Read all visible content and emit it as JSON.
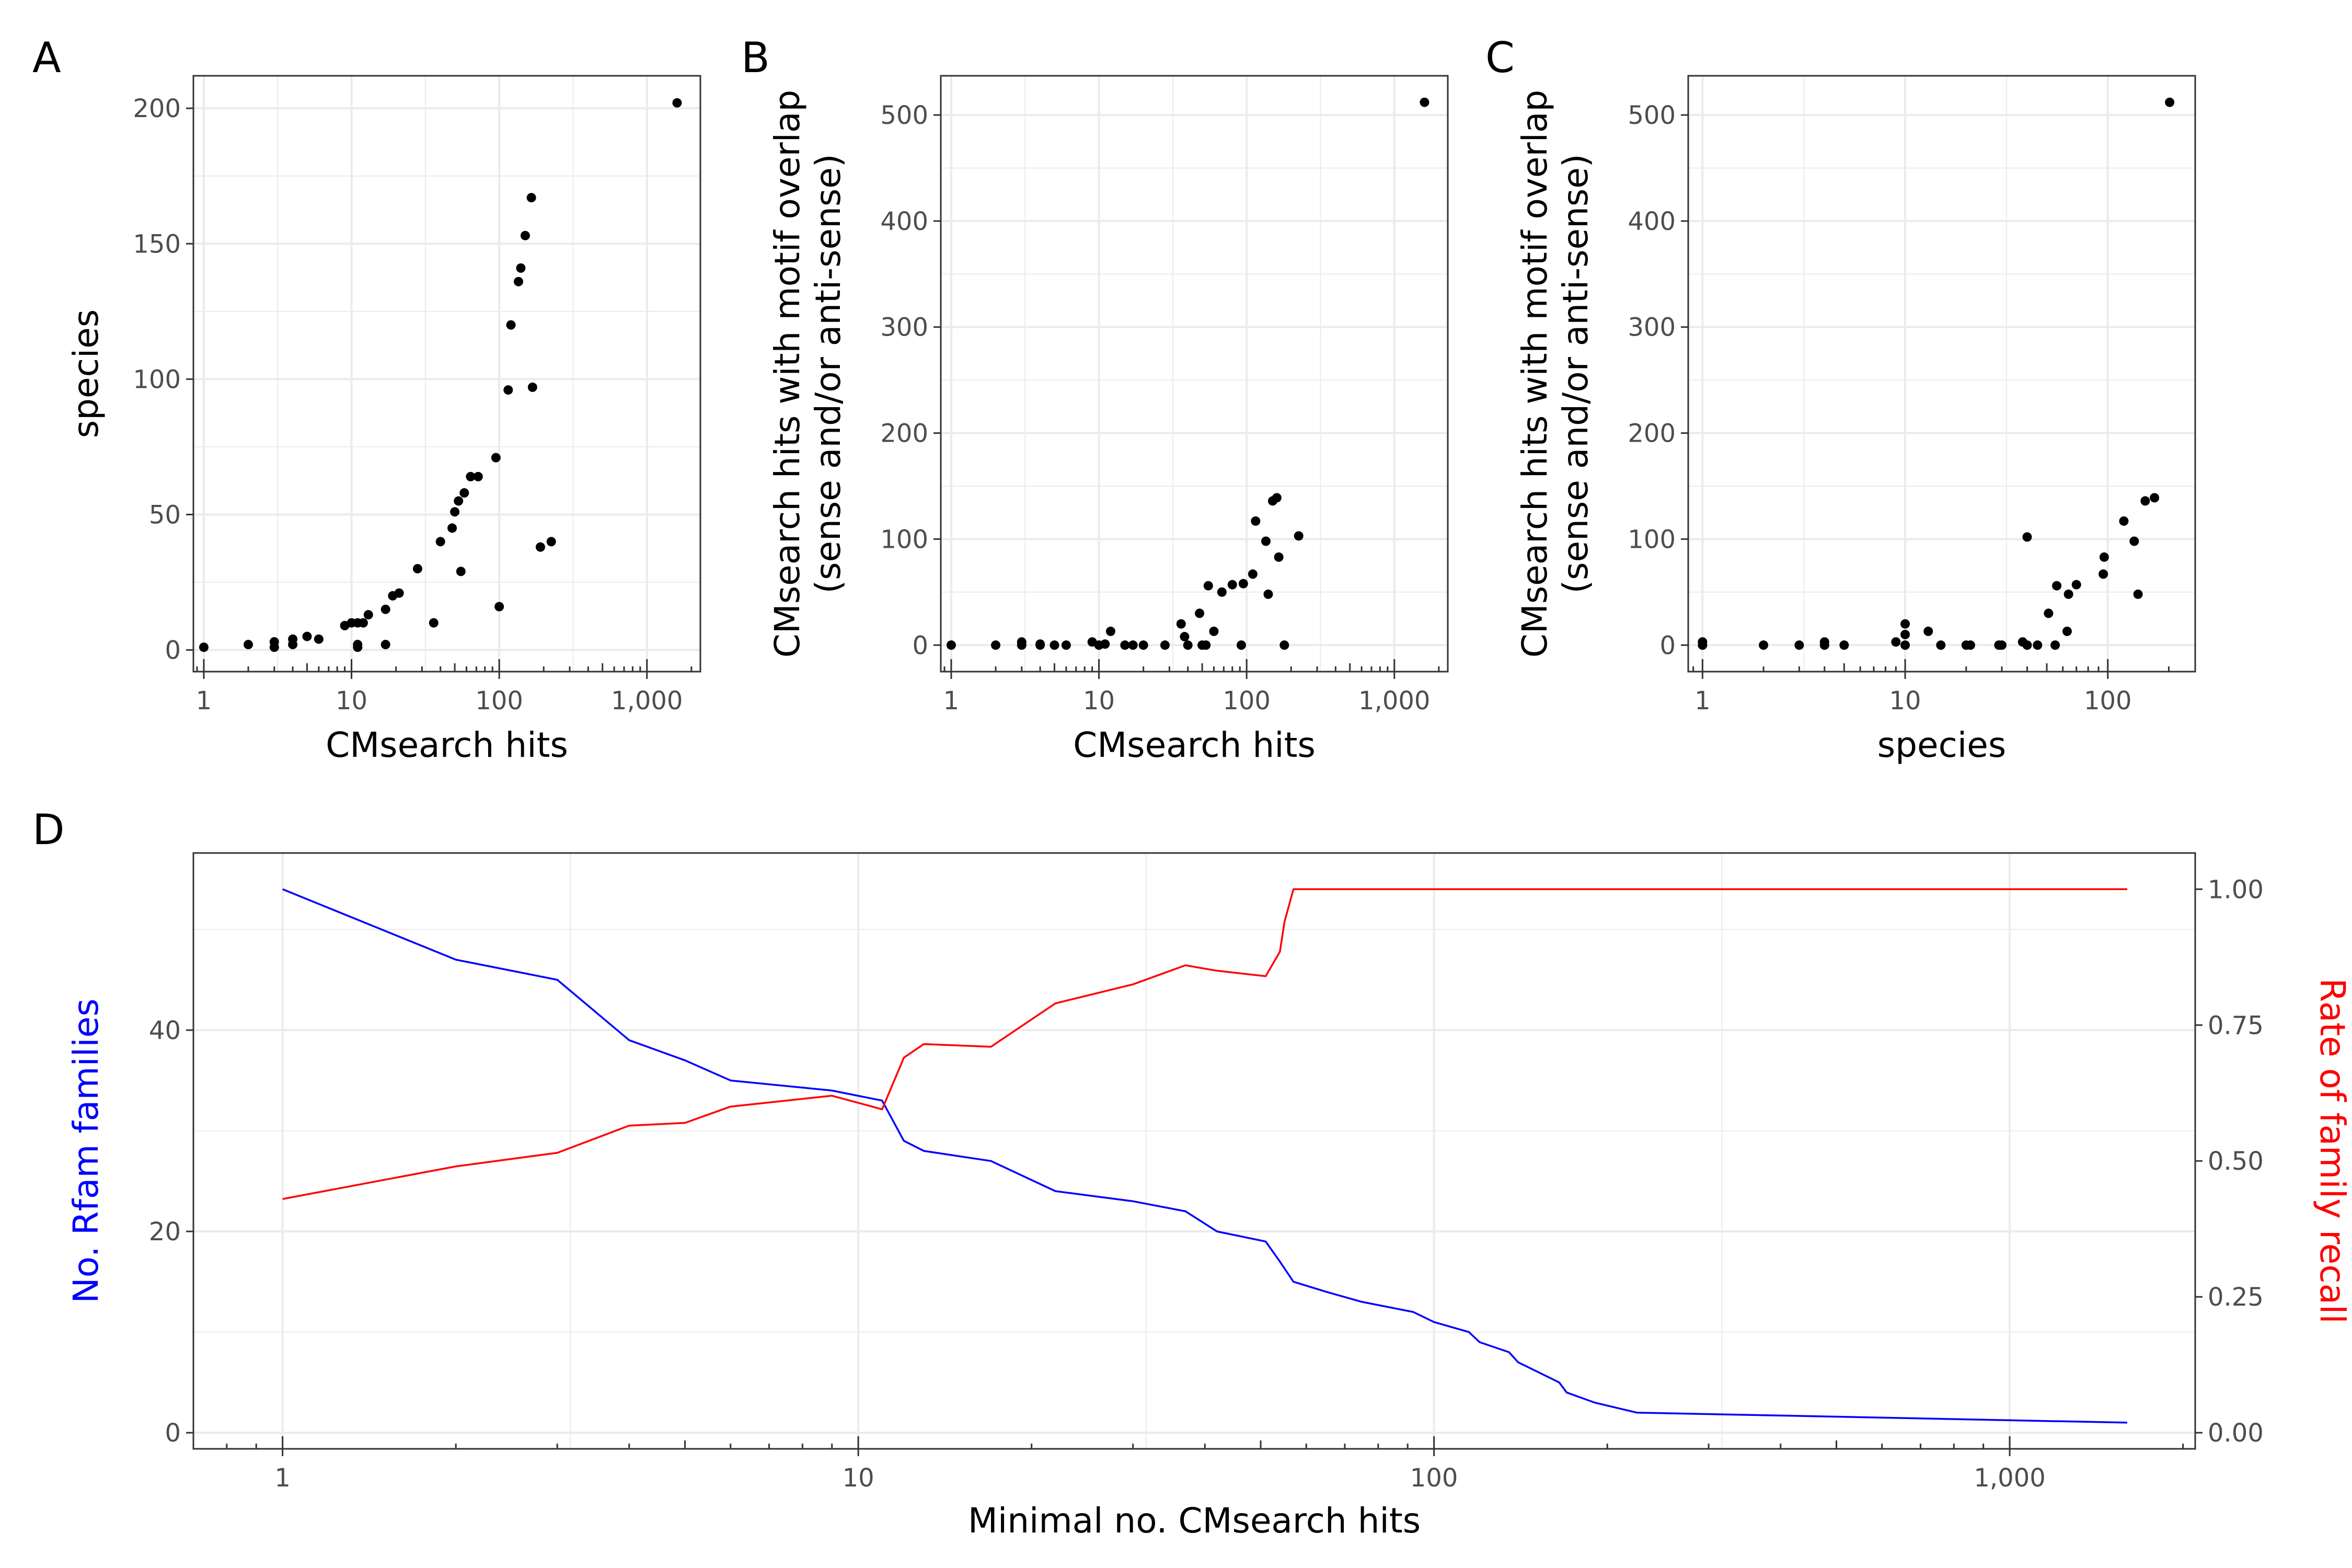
{
  "colors": {
    "point": "#000000",
    "grid": "#ebebeb",
    "frame": "#333333",
    "blue": "#0000ff",
    "red": "#ff0000"
  },
  "chart_data": [
    {
      "panel": "A",
      "type": "scatter",
      "xlabel": "CMsearch hits",
      "ylabel": "species",
      "x_scale": "log10",
      "xlim": [
        0.85,
        2300
      ],
      "ylim": [
        -8,
        212
      ],
      "x_ticks": [
        {
          "value": 1,
          "label": "1"
        },
        {
          "value": 10,
          "label": "10"
        },
        {
          "value": 100,
          "label": "100"
        },
        {
          "value": 1000,
          "label": "1,000"
        }
      ],
      "y_ticks": [
        {
          "value": 0,
          "label": "0"
        },
        {
          "value": 50,
          "label": "50"
        },
        {
          "value": 100,
          "label": "100"
        },
        {
          "value": 150,
          "label": "150"
        },
        {
          "value": 200,
          "label": "200"
        }
      ],
      "points": [
        [
          1,
          1
        ],
        [
          2,
          2
        ],
        [
          3,
          1
        ],
        [
          3,
          3
        ],
        [
          4,
          2
        ],
        [
          4,
          4
        ],
        [
          5,
          5
        ],
        [
          6,
          4
        ],
        [
          9,
          9
        ],
        [
          10,
          10
        ],
        [
          11,
          1
        ],
        [
          11,
          2
        ],
        [
          11,
          10
        ],
        [
          12,
          10
        ],
        [
          13,
          13
        ],
        [
          17,
          15
        ],
        [
          17,
          2
        ],
        [
          19,
          20
        ],
        [
          21,
          21
        ],
        [
          28,
          30
        ],
        [
          36,
          10
        ],
        [
          40,
          40
        ],
        [
          48,
          45
        ],
        [
          50,
          51
        ],
        [
          53,
          55
        ],
        [
          55,
          29
        ],
        [
          58,
          58
        ],
        [
          64,
          64
        ],
        [
          72,
          64
        ],
        [
          95,
          71
        ],
        [
          100,
          16
        ],
        [
          115,
          96
        ],
        [
          120,
          120
        ],
        [
          135,
          136
        ],
        [
          140,
          141
        ],
        [
          150,
          153
        ],
        [
          165,
          167
        ],
        [
          168,
          97
        ],
        [
          190,
          38
        ],
        [
          225,
          40
        ],
        [
          1600,
          202
        ]
      ]
    },
    {
      "panel": "B",
      "type": "scatter",
      "xlabel": "CMsearch hits",
      "ylabel": "CMsearch hits with motif overlap\n(sense and/or anti-sense)",
      "x_scale": "log10",
      "xlim": [
        0.85,
        2300
      ],
      "ylim": [
        -25,
        537
      ],
      "x_ticks": [
        {
          "value": 1,
          "label": "1"
        },
        {
          "value": 10,
          "label": "10"
        },
        {
          "value": 100,
          "label": "100"
        },
        {
          "value": 1000,
          "label": "1,000"
        }
      ],
      "y_ticks": [
        {
          "value": 0,
          "label": "0"
        },
        {
          "value": 100,
          "label": "100"
        },
        {
          "value": 200,
          "label": "200"
        },
        {
          "value": 300,
          "label": "300"
        },
        {
          "value": 400,
          "label": "400"
        },
        {
          "value": 500,
          "label": "500"
        }
      ],
      "points": [
        [
          1,
          0
        ],
        [
          2,
          0
        ],
        [
          3,
          0
        ],
        [
          3,
          3
        ],
        [
          4,
          1
        ],
        [
          4,
          0
        ],
        [
          5,
          0
        ],
        [
          6,
          0
        ],
        [
          9,
          3
        ],
        [
          10,
          0
        ],
        [
          11,
          1
        ],
        [
          12,
          13
        ],
        [
          15,
          0
        ],
        [
          17,
          0
        ],
        [
          20,
          0
        ],
        [
          28,
          0
        ],
        [
          36,
          20
        ],
        [
          38,
          8
        ],
        [
          40,
          0
        ],
        [
          48,
          30
        ],
        [
          50,
          0
        ],
        [
          53,
          0
        ],
        [
          55,
          56
        ],
        [
          60,
          13
        ],
        [
          68,
          50
        ],
        [
          80,
          57
        ],
        [
          92,
          0
        ],
        [
          95,
          58
        ],
        [
          110,
          67
        ],
        [
          115,
          117
        ],
        [
          135,
          98
        ],
        [
          140,
          48
        ],
        [
          150,
          136
        ],
        [
          160,
          139
        ],
        [
          165,
          83
        ],
        [
          180,
          0
        ],
        [
          225,
          103
        ],
        [
          1600,
          512
        ]
      ]
    },
    {
      "panel": "C",
      "type": "scatter",
      "xlabel": "species",
      "ylabel": "CMsearch hits with motif overlap\n(sense and/or anti-sense)",
      "x_scale": "log10",
      "xlim": [
        0.85,
        270
      ],
      "ylim": [
        -25,
        537
      ],
      "x_ticks": [
        {
          "value": 1,
          "label": "1"
        },
        {
          "value": 10,
          "label": "10"
        },
        {
          "value": 100,
          "label": "100"
        }
      ],
      "y_ticks": [
        {
          "value": 0,
          "label": "0"
        },
        {
          "value": 100,
          "label": "100"
        },
        {
          "value": 200,
          "label": "200"
        },
        {
          "value": 300,
          "label": "300"
        },
        {
          "value": 400,
          "label": "400"
        },
        {
          "value": 500,
          "label": "500"
        }
      ],
      "points": [
        [
          1,
          0
        ],
        [
          1,
          3
        ],
        [
          2,
          0
        ],
        [
          3,
          0
        ],
        [
          4,
          3
        ],
        [
          4,
          0
        ],
        [
          5,
          0
        ],
        [
          9,
          3
        ],
        [
          10,
          20
        ],
        [
          10,
          10
        ],
        [
          10,
          0
        ],
        [
          13,
          13
        ],
        [
          15,
          0
        ],
        [
          20,
          0
        ],
        [
          21,
          0
        ],
        [
          29,
          0
        ],
        [
          30,
          0
        ],
        [
          38,
          3
        ],
        [
          40,
          102
        ],
        [
          40,
          0
        ],
        [
          45,
          0
        ],
        [
          51,
          30
        ],
        [
          55,
          0
        ],
        [
          56,
          56
        ],
        [
          63,
          13
        ],
        [
          64,
          48
        ],
        [
          70,
          57
        ],
        [
          95,
          67
        ],
        [
          96,
          83
        ],
        [
          120,
          117
        ],
        [
          135,
          98
        ],
        [
          141,
          48
        ],
        [
          153,
          136
        ],
        [
          170,
          139
        ],
        [
          202,
          512
        ]
      ]
    },
    {
      "panel": "D",
      "type": "line",
      "xlabel": "Minimal no. CMsearch hits",
      "ylabel": "No. Rfam families",
      "y2label": "Rate of family recall",
      "x_scale": "log10",
      "xlim": [
        0.7,
        2100
      ],
      "ylim": [
        -1.6,
        57.6
      ],
      "y2lim": [
        -0.0296,
        1.0666
      ],
      "x_ticks": [
        {
          "value": 1,
          "label": "1"
        },
        {
          "value": 10,
          "label": "10"
        },
        {
          "value": 100,
          "label": "100"
        },
        {
          "value": 1000,
          "label": "1,000"
        }
      ],
      "y_ticks": [
        {
          "value": 0,
          "label": "0"
        },
        {
          "value": 20,
          "label": "20"
        },
        {
          "value": 40,
          "label": "40"
        }
      ],
      "y2_ticks": [
        {
          "value": 0,
          "label": "0.00"
        },
        {
          "value": 0.25,
          "label": "0.25"
        },
        {
          "value": 0.5,
          "label": "0.50"
        },
        {
          "value": 0.75,
          "label": "0.75"
        },
        {
          "value": 1,
          "label": "1.00"
        }
      ],
      "series": [
        {
          "name": "No. Rfam families",
          "axis": "left",
          "color": "#0000ff",
          "points": [
            [
              1,
              54
            ],
            [
              2,
              47
            ],
            [
              3,
              45
            ],
            [
              4,
              39
            ],
            [
              5,
              37
            ],
            [
              6,
              35
            ],
            [
              9,
              34
            ],
            [
              11,
              33
            ],
            [
              12,
              29
            ],
            [
              13,
              28
            ],
            [
              17,
              27
            ],
            [
              22,
              24
            ],
            [
              30,
              23
            ],
            [
              37,
              22
            ],
            [
              42,
              20
            ],
            [
              51,
              19
            ],
            [
              54,
              17
            ],
            [
              57,
              15
            ],
            [
              65,
              14
            ],
            [
              75,
              13
            ],
            [
              92,
              12
            ],
            [
              100,
              11
            ],
            [
              115,
              10
            ],
            [
              120,
              9
            ],
            [
              135,
              8
            ],
            [
              140,
              7
            ],
            [
              165,
              5
            ],
            [
              170,
              4
            ],
            [
              190,
              3
            ],
            [
              225,
              2
            ],
            [
              1600,
              1
            ]
          ]
        },
        {
          "name": "Rate of family recall",
          "axis": "right",
          "color": "#ff0000",
          "points": [
            [
              1,
              0.43
            ],
            [
              2,
              0.49
            ],
            [
              3,
              0.515
            ],
            [
              4,
              0.565
            ],
            [
              5,
              0.57
            ],
            [
              6,
              0.6
            ],
            [
              9,
              0.62
            ],
            [
              11,
              0.595
            ],
            [
              12,
              0.69
            ],
            [
              13,
              0.715
            ],
            [
              17,
              0.71
            ],
            [
              22,
              0.79
            ],
            [
              30,
              0.825
            ],
            [
              37,
              0.86
            ],
            [
              42,
              0.85
            ],
            [
              51,
              0.84
            ],
            [
              54,
              0.885
            ],
            [
              55,
              0.94
            ],
            [
              57,
              1.0
            ],
            [
              1600,
              1.0
            ]
          ]
        }
      ]
    }
  ]
}
